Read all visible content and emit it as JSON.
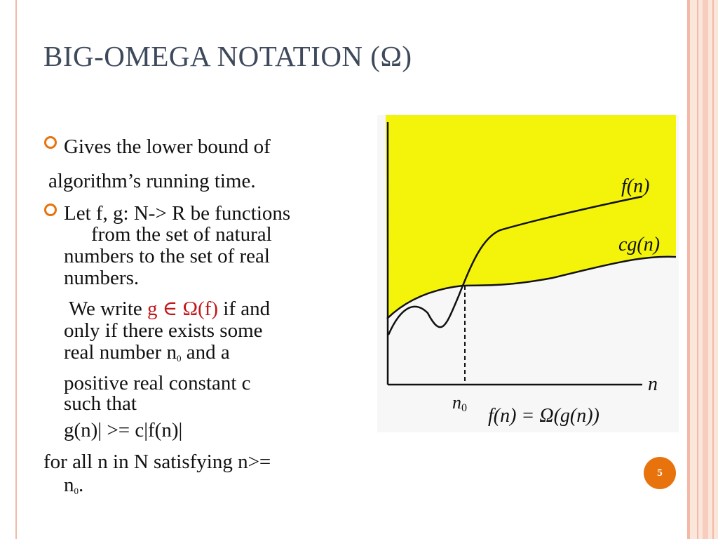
{
  "slide": {
    "title": "BIG-OMEGA NOTATION (Ω)",
    "page_number": "5",
    "accent_color": "#e8720c",
    "title_color": "#3e4a5c",
    "highlight_color": "#c0181a",
    "bullets": [
      {
        "icon": "ring-bullet-icon",
        "lines": [
          "Gives the lower bound of",
          "algorithm’s running time."
        ]
      },
      {
        "icon": "ring-bullet-icon",
        "lines": [
          "Let f, g: N-> R be functions",
          "from the set of natural",
          "numbers to the set of real",
          "numbers.",
          "We write",
          "g ∈ Ω(f)",
          "if and",
          "only if there exists some",
          "real number n",
          "0",
          "and a",
          "positive real constant c",
          "such that",
          "g(n)| >= c|f(n)|",
          "for all n in N satisfying n>=",
          "n",
          "0",
          "."
        ]
      }
    ]
  },
  "diagram": {
    "curve_f_label": "f(n)",
    "curve_cg_label": "cg(n)",
    "x_axis_label": "n",
    "n0_label": "n",
    "n0_sub": "0",
    "formula": "f(n) = Ω(g(n))",
    "fill_color": "#f4f40a"
  }
}
